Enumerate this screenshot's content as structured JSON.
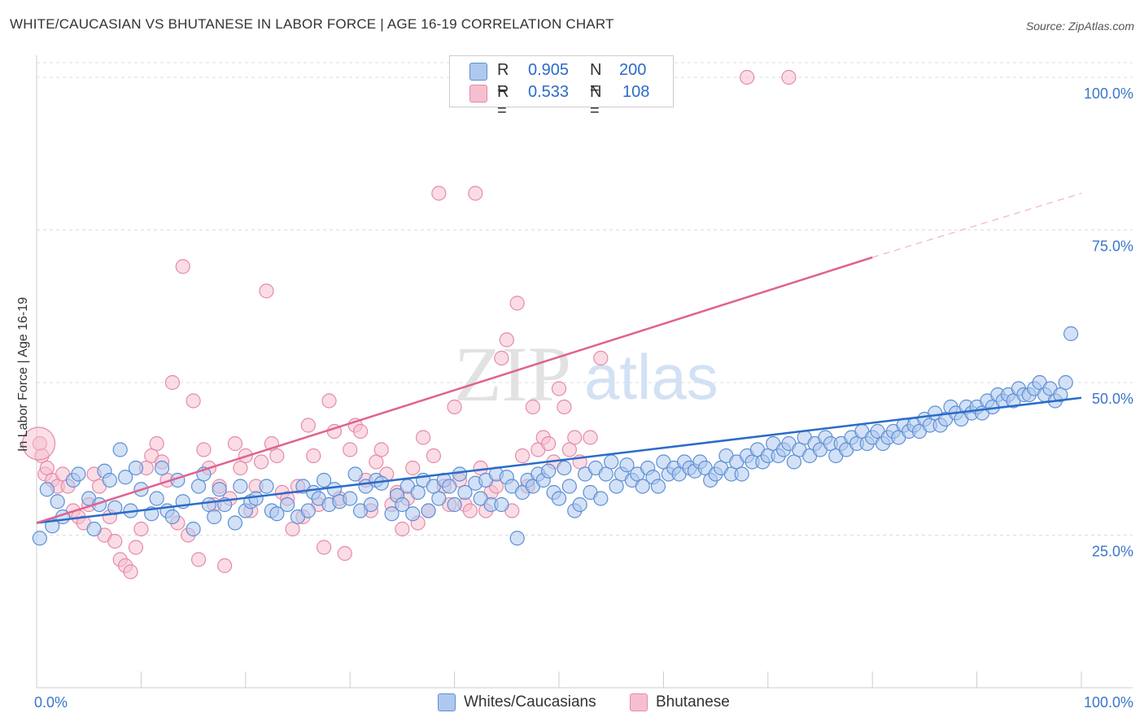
{
  "header": {
    "title": "WHITE/CAUCASIAN VS BHUTANESE IN LABOR FORCE | AGE 16-19 CORRELATION CHART",
    "source": "Source: ZipAtlas.com"
  },
  "watermark": {
    "zip": "ZIP",
    "atlas": "atlas"
  },
  "legend": {
    "rows": [
      {
        "r_label": "R =",
        "r_value": "0.905",
        "n_label": "N =",
        "n_value": "200",
        "color": "#aec8ee"
      },
      {
        "r_label": "R =",
        "r_value": "0.533",
        "n_label": "N =",
        "n_value": "108",
        "color": "#f6bfd0"
      }
    ],
    "series_names": [
      "Whites/Caucasians",
      "Bhutanese"
    ]
  },
  "chart_data": {
    "type": "scatter",
    "title": "WHITE/CAUCASIAN VS BHUTANESE IN LABOR FORCE | AGE 16-19 CORRELATION CHART",
    "xlabel": "",
    "ylabel": "In Labor Force | Age 16-19",
    "xlim": [
      0,
      100
    ],
    "ylim": [
      0,
      102
    ],
    "x_tick_labels": [
      "0.0%",
      "100.0%"
    ],
    "y_ticks": [
      25,
      50,
      75,
      100
    ],
    "y_tick_labels": [
      "25.0%",
      "50.0%",
      "75.0%",
      "100.0%"
    ],
    "colors": {
      "white_fill": "#aec8ee",
      "white_stroke": "#5b8fd4",
      "white_line": "#2a6cc8",
      "bhu_fill": "#f6bfd0",
      "bhu_stroke": "#e58aa8",
      "bhu_line": "#e0628f",
      "axis_text": "#3a76c9"
    },
    "series": [
      {
        "name": "Whites/Caucasians",
        "r": 0.905,
        "n": 200,
        "trend": {
          "x0": 0,
          "y0": 27.0,
          "x1": 100,
          "y1": 47.5
        },
        "points": [
          [
            0.3,
            24.5
          ],
          [
            1,
            32.5
          ],
          [
            1.5,
            26.5
          ],
          [
            2,
            30.5
          ],
          [
            2.5,
            28
          ],
          [
            3.5,
            34
          ],
          [
            4,
            35
          ],
          [
            5,
            31
          ],
          [
            5.5,
            26
          ],
          [
            6,
            30
          ],
          [
            6.5,
            35.5
          ],
          [
            7,
            34
          ],
          [
            7.5,
            29.5
          ],
          [
            8,
            39
          ],
          [
            8.5,
            34.5
          ],
          [
            9,
            29
          ],
          [
            9.5,
            36
          ],
          [
            10,
            32.5
          ],
          [
            11,
            28.5
          ],
          [
            11.5,
            31
          ],
          [
            12,
            36
          ],
          [
            12.5,
            29
          ],
          [
            13,
            28
          ],
          [
            13.5,
            34
          ],
          [
            14,
            30.5
          ],
          [
            15,
            26
          ],
          [
            15.5,
            33
          ],
          [
            16,
            35
          ],
          [
            16.5,
            30
          ],
          [
            17,
            28
          ],
          [
            17.5,
            32.5
          ],
          [
            18,
            30
          ],
          [
            19,
            27
          ],
          [
            19.5,
            33
          ],
          [
            20,
            29
          ],
          [
            20.5,
            30.5
          ],
          [
            21,
            31
          ],
          [
            22,
            33
          ],
          [
            22.5,
            29
          ],
          [
            23,
            28.5
          ],
          [
            24,
            30
          ],
          [
            25,
            28
          ],
          [
            25.5,
            33
          ],
          [
            26,
            29
          ],
          [
            26.5,
            32
          ],
          [
            27,
            31
          ],
          [
            27.5,
            34
          ],
          [
            28,
            30
          ],
          [
            28.5,
            32.5
          ],
          [
            29,
            30.5
          ],
          [
            30,
            31
          ],
          [
            30.5,
            35
          ],
          [
            31,
            29
          ],
          [
            31.5,
            33
          ],
          [
            32,
            30
          ],
          [
            32.5,
            34
          ],
          [
            33,
            33.5
          ],
          [
            34,
            28.5
          ],
          [
            34.5,
            31.5
          ],
          [
            35,
            30
          ],
          [
            35.5,
            33
          ],
          [
            36,
            28.5
          ],
          [
            36.5,
            32
          ],
          [
            37,
            34
          ],
          [
            37.5,
            29
          ],
          [
            38,
            33
          ],
          [
            38.5,
            31
          ],
          [
            39,
            34
          ],
          [
            39.5,
            33
          ],
          [
            40,
            30
          ],
          [
            40.5,
            35
          ],
          [
            41,
            32
          ],
          [
            42,
            33.5
          ],
          [
            42.5,
            31
          ],
          [
            43,
            34
          ],
          [
            43.5,
            30
          ],
          [
            44,
            35
          ],
          [
            44.5,
            30
          ],
          [
            45,
            34.5
          ],
          [
            45.5,
            33
          ],
          [
            46,
            24.5
          ],
          [
            46.5,
            32
          ],
          [
            47,
            34
          ],
          [
            47.5,
            33
          ],
          [
            48,
            35
          ],
          [
            48.5,
            34
          ],
          [
            49,
            35.5
          ],
          [
            49.5,
            32
          ],
          [
            50,
            31
          ],
          [
            50.5,
            36
          ],
          [
            51,
            33
          ],
          [
            51.5,
            29
          ],
          [
            52,
            30
          ],
          [
            52.5,
            35
          ],
          [
            53,
            32
          ],
          [
            53.5,
            36
          ],
          [
            54,
            31
          ],
          [
            54.5,
            35
          ],
          [
            55,
            37
          ],
          [
            55.5,
            33
          ],
          [
            56,
            35
          ],
          [
            56.5,
            36.5
          ],
          [
            57,
            34
          ],
          [
            57.5,
            35
          ],
          [
            58,
            33
          ],
          [
            58.5,
            36
          ],
          [
            59,
            34.5
          ],
          [
            59.5,
            33
          ],
          [
            60,
            37
          ],
          [
            60.5,
            35
          ],
          [
            61,
            36
          ],
          [
            61.5,
            35
          ],
          [
            62,
            37
          ],
          [
            62.5,
            36
          ],
          [
            63,
            35.5
          ],
          [
            63.5,
            37
          ],
          [
            64,
            36
          ],
          [
            64.5,
            34
          ],
          [
            65,
            35
          ],
          [
            65.5,
            36
          ],
          [
            66,
            38
          ],
          [
            66.5,
            35
          ],
          [
            67,
            37
          ],
          [
            67.5,
            35
          ],
          [
            68,
            38
          ],
          [
            68.5,
            37
          ],
          [
            69,
            39
          ],
          [
            69.5,
            37
          ],
          [
            70,
            38
          ],
          [
            70.5,
            40
          ],
          [
            71,
            38
          ],
          [
            71.5,
            39
          ],
          [
            72,
            40
          ],
          [
            72.5,
            37
          ],
          [
            73,
            39
          ],
          [
            73.5,
            41
          ],
          [
            74,
            38
          ],
          [
            74.5,
            40
          ],
          [
            75,
            39
          ],
          [
            75.5,
            41
          ],
          [
            76,
            40
          ],
          [
            76.5,
            38
          ],
          [
            77,
            40
          ],
          [
            77.5,
            39
          ],
          [
            78,
            41
          ],
          [
            78.5,
            40
          ],
          [
            79,
            42
          ],
          [
            79.5,
            40
          ],
          [
            80,
            41
          ],
          [
            80.5,
            42
          ],
          [
            81,
            40
          ],
          [
            81.5,
            41
          ],
          [
            82,
            42
          ],
          [
            82.5,
            41
          ],
          [
            83,
            43
          ],
          [
            83.5,
            42
          ],
          [
            84,
            43
          ],
          [
            84.5,
            42
          ],
          [
            85,
            44
          ],
          [
            85.5,
            43
          ],
          [
            86,
            45
          ],
          [
            86.5,
            43
          ],
          [
            87,
            44
          ],
          [
            87.5,
            46
          ],
          [
            88,
            45
          ],
          [
            88.5,
            44
          ],
          [
            89,
            46
          ],
          [
            89.5,
            45
          ],
          [
            90,
            46
          ],
          [
            90.5,
            45
          ],
          [
            91,
            47
          ],
          [
            91.5,
            46
          ],
          [
            92,
            48
          ],
          [
            92.5,
            47
          ],
          [
            93,
            48
          ],
          [
            93.5,
            47
          ],
          [
            94,
            49
          ],
          [
            94.5,
            48
          ],
          [
            95,
            48
          ],
          [
            95.5,
            49
          ],
          [
            96,
            50
          ],
          [
            96.5,
            48
          ],
          [
            97,
            49
          ],
          [
            97.5,
            47
          ],
          [
            98,
            48
          ],
          [
            98.5,
            50
          ],
          [
            99,
            58
          ]
        ]
      },
      {
        "name": "Bhutanese",
        "r": 0.533,
        "n": 108,
        "trend": {
          "x0": 0,
          "y0": 27.0,
          "x1": 80,
          "y1": 70.5,
          "dash_x1": 100,
          "dash_y1": 81.0
        },
        "points": [
          [
            0.3,
            40
          ],
          [
            0.5,
            38
          ],
          [
            0.8,
            35
          ],
          [
            1,
            36
          ],
          [
            1.5,
            34
          ],
          [
            2,
            33
          ],
          [
            2.5,
            35
          ],
          [
            3,
            33
          ],
          [
            3.5,
            29
          ],
          [
            4,
            28
          ],
          [
            4.5,
            27
          ],
          [
            5,
            30
          ],
          [
            5.5,
            35
          ],
          [
            6,
            33
          ],
          [
            6.5,
            25
          ],
          [
            7,
            28
          ],
          [
            7.5,
            24
          ],
          [
            8,
            21
          ],
          [
            8.5,
            20
          ],
          [
            9,
            19
          ],
          [
            9.5,
            23
          ],
          [
            10,
            26
          ],
          [
            10.5,
            36
          ],
          [
            11,
            38
          ],
          [
            11.5,
            40
          ],
          [
            12,
            37
          ],
          [
            12.5,
            34
          ],
          [
            13,
            50
          ],
          [
            13.5,
            27
          ],
          [
            14,
            69
          ],
          [
            14.5,
            25
          ],
          [
            15,
            47
          ],
          [
            15.5,
            21
          ],
          [
            16,
            39
          ],
          [
            16.5,
            36
          ],
          [
            17,
            30
          ],
          [
            17.5,
            33
          ],
          [
            18,
            20
          ],
          [
            18.5,
            31
          ],
          [
            19,
            40
          ],
          [
            19.5,
            36
          ],
          [
            20,
            38
          ],
          [
            20.5,
            29
          ],
          [
            21,
            33
          ],
          [
            21.5,
            37
          ],
          [
            22,
            65
          ],
          [
            22.5,
            40
          ],
          [
            23,
            38
          ],
          [
            23.5,
            32
          ],
          [
            24,
            31
          ],
          [
            24.5,
            26
          ],
          [
            25,
            33
          ],
          [
            25.5,
            28
          ],
          [
            26,
            43
          ],
          [
            26.5,
            38
          ],
          [
            27,
            30
          ],
          [
            27.5,
            23
          ],
          [
            28,
            47
          ],
          [
            28.5,
            42
          ],
          [
            29,
            31
          ],
          [
            29.5,
            22
          ],
          [
            30,
            39
          ],
          [
            30.5,
            43
          ],
          [
            31,
            42
          ],
          [
            31.5,
            34
          ],
          [
            32,
            29
          ],
          [
            32.5,
            37
          ],
          [
            33,
            39
          ],
          [
            33.5,
            35
          ],
          [
            34,
            30
          ],
          [
            34.5,
            32
          ],
          [
            35,
            26
          ],
          [
            35.5,
            31
          ],
          [
            36,
            36
          ],
          [
            36.5,
            27
          ],
          [
            37,
            41
          ],
          [
            37.5,
            29
          ],
          [
            38,
            38
          ],
          [
            38.5,
            81
          ],
          [
            39,
            33
          ],
          [
            39.5,
            30
          ],
          [
            40,
            46
          ],
          [
            40.5,
            34
          ],
          [
            41,
            30
          ],
          [
            41.5,
            29
          ],
          [
            42,
            81
          ],
          [
            42.5,
            36
          ],
          [
            43,
            29
          ],
          [
            43.5,
            32
          ],
          [
            44,
            33
          ],
          [
            44.5,
            54
          ],
          [
            45,
            57
          ],
          [
            45.5,
            29
          ],
          [
            46,
            63
          ],
          [
            46.5,
            38
          ],
          [
            47,
            33
          ],
          [
            47.5,
            46
          ],
          [
            48,
            39
          ],
          [
            48.5,
            41
          ],
          [
            49,
            40
          ],
          [
            49.5,
            37
          ],
          [
            50,
            49
          ],
          [
            50.5,
            46
          ],
          [
            51,
            39
          ],
          [
            51.5,
            41
          ],
          [
            52,
            37
          ],
          [
            53,
            41
          ],
          [
            54,
            54
          ],
          [
            68,
            100
          ],
          [
            72,
            100
          ]
        ]
      }
    ]
  }
}
